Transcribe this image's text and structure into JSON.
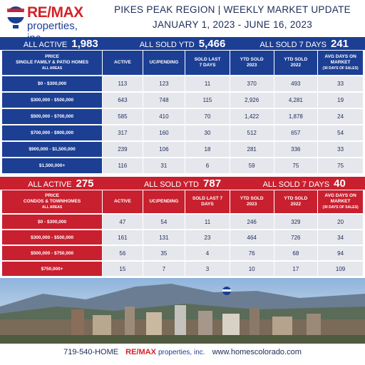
{
  "header": {
    "brand": "RE/MAX",
    "brand_sub": "properties, inc.",
    "title": "PIKES PEAK REGION | WEEKLY MARKET UPDATE",
    "subtitle": "JANUARY 1, 2023 - JUNE 16, 2023"
  },
  "sections": [
    {
      "theme": "blue",
      "summary": [
        {
          "label": "ALL ACTIVE",
          "value": "1,983"
        },
        {
          "label": "ALL SOLD YTD",
          "value": "5,466"
        },
        {
          "label": "ALL SOLD 7 DAYS",
          "value": "241"
        }
      ],
      "columns": [
        [
          "PRICE",
          "SINGLE FAMILY & PATIO HOMES",
          "ALL AREAS"
        ],
        [
          "ACTIVE"
        ],
        [
          "UC/PENDING"
        ],
        [
          "SOLD LAST",
          "7 DAYS"
        ],
        [
          "YTD SOLD",
          "2023"
        ],
        [
          "YTD SOLD",
          "2022"
        ],
        [
          "AVG DAYS ON",
          "MARKET",
          "(30 DAYS OF SALES)"
        ]
      ],
      "rows": [
        {
          "label": "$0 - $300,000",
          "cells": [
            "113",
            "123",
            "11",
            "370",
            "493",
            "33"
          ]
        },
        {
          "label": "$300,000 - $500,000",
          "cells": [
            "643",
            "748",
            "115",
            "2,926",
            "4,281",
            "19"
          ]
        },
        {
          "label": "$500,000 - $700,000",
          "cells": [
            "585",
            "410",
            "70",
            "1,422",
            "1,878",
            "24"
          ]
        },
        {
          "label": "$700,000 - $900,000",
          "cells": [
            "317",
            "160",
            "30",
            "512",
            "657",
            "54"
          ]
        },
        {
          "label": "$900,000 - $1,500,000",
          "cells": [
            "239",
            "106",
            "18",
            "281",
            "336",
            "33"
          ]
        },
        {
          "label": "$1,500,000+",
          "cells": [
            "116",
            "31",
            "6",
            "59",
            "75",
            "75"
          ]
        }
      ]
    },
    {
      "theme": "red",
      "summary": [
        {
          "label": "ALL ACTIVE",
          "value": "275"
        },
        {
          "label": "ALL SOLD YTD",
          "value": "787"
        },
        {
          "label": "ALL SOLD 7 DAYS",
          "value": "40"
        }
      ],
      "columns": [
        [
          "PRICE",
          "CONDOS & TOWNHOMES",
          "ALL AREAS"
        ],
        [
          "ACTIVE"
        ],
        [
          "UC/PENDING"
        ],
        [
          "SOLD LAST 7",
          "DAYS"
        ],
        [
          "YTD SOLD",
          "2023"
        ],
        [
          "YTD SOLD",
          "2022"
        ],
        [
          "AVG DAYS ON",
          "MARKET",
          "(30 DAYS OF SALES)"
        ]
      ],
      "rows": [
        {
          "label": "$0 - $300,000",
          "cells": [
            "47",
            "54",
            "11",
            "246",
            "329",
            "20"
          ]
        },
        {
          "label": "$300,000 - $500,000",
          "cells": [
            "161",
            "131",
            "23",
            "464",
            "726",
            "34"
          ]
        },
        {
          "label": "$500,000 - $750,000",
          "cells": [
            "56",
            "35",
            "4",
            "76",
            "68",
            "94"
          ]
        },
        {
          "label": "$750,000+",
          "cells": [
            "15",
            "7",
            "3",
            "10",
            "17",
            "109"
          ]
        }
      ]
    }
  ],
  "footer": {
    "phone": "719-540-HOME",
    "brand": "RE/MAX",
    "brand_sub": "properties, inc.",
    "website": "www.homescolorado.com"
  }
}
